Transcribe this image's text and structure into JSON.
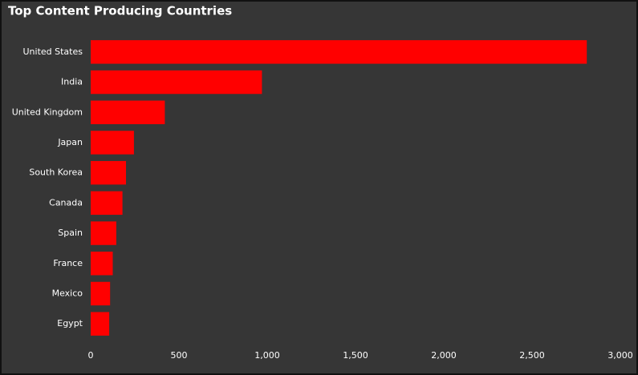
{
  "chart_data": {
    "type": "bar",
    "orientation": "horizontal",
    "title": "Top Content Producing Countries",
    "categories": [
      "United States",
      "India",
      "United Kingdom",
      "Japan",
      "South Korea",
      "Canada",
      "Spain",
      "France",
      "Mexico",
      "Egypt"
    ],
    "values": [
      2810,
      970,
      420,
      245,
      200,
      180,
      145,
      125,
      110,
      105
    ],
    "color": "#ff0000",
    "xlim": [
      0,
      3000
    ],
    "xticks": [
      0,
      500,
      {
        "value": 1000,
        "label": "1,000"
      },
      {
        "value": 1500,
        "label": "1,500"
      },
      {
        "value": 2000,
        "label": "2,000"
      },
      {
        "value": 2500,
        "label": "2,500"
      },
      {
        "value": 3000,
        "label": "3,000"
      }
    ],
    "grid": false
  }
}
